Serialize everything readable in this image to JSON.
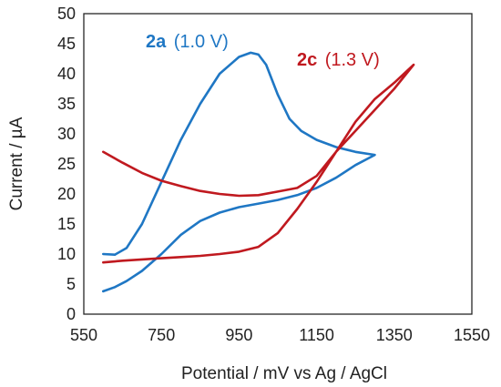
{
  "chart_data": {
    "type": "line",
    "title": "",
    "xlabel": "Potential / mV vs Ag / AgCl",
    "ylabel": "Current / µA",
    "xlim": [
      550,
      1550
    ],
    "ylim": [
      0,
      50
    ],
    "xticks": [
      550,
      750,
      950,
      1150,
      1350,
      1550
    ],
    "yticks": [
      0,
      5,
      10,
      15,
      20,
      25,
      30,
      35,
      40,
      45,
      50
    ],
    "grid": false,
    "legend": "none",
    "annotations": [
      {
        "bold": "2a",
        "text": "(1.0 V)",
        "color": "#1f77c4"
      },
      {
        "bold": "2c",
        "text": "(1.3 V)",
        "color": "#c0191f"
      }
    ],
    "series": [
      {
        "color": "#1f77c4",
        "x": [
          600,
          630,
          660,
          700,
          750,
          800,
          850,
          900,
          950,
          980,
          1000,
          1020,
          1050,
          1080,
          1110,
          1150,
          1200,
          1250,
          1300,
          1250,
          1200,
          1150,
          1100,
          1050,
          1000,
          950,
          900,
          850,
          800,
          750,
          700,
          660,
          630,
          600
        ],
        "y": [
          10.0,
          9.9,
          11.0,
          15.0,
          22.0,
          29.0,
          35.0,
          40.0,
          42.8,
          43.5,
          43.2,
          41.5,
          36.5,
          32.5,
          30.5,
          29.0,
          27.8,
          27.0,
          26.5,
          24.8,
          22.7,
          21.0,
          19.8,
          19.0,
          18.4,
          17.8,
          16.9,
          15.5,
          13.2,
          10.0,
          7.2,
          5.5,
          4.5,
          3.8
        ]
      },
      {
        "color": "#c0191f",
        "x": [
          600,
          650,
          700,
          750,
          800,
          850,
          900,
          950,
          1000,
          1050,
          1100,
          1150,
          1200,
          1250,
          1300,
          1350,
          1400,
          1350,
          1300,
          1250,
          1200,
          1150,
          1100,
          1050,
          1000,
          950,
          900,
          850,
          800,
          750,
          700,
          650,
          600
        ],
        "y": [
          27.0,
          25.2,
          23.5,
          22.2,
          21.3,
          20.5,
          20.0,
          19.7,
          19.8,
          20.4,
          21.0,
          23.0,
          27.0,
          32.0,
          35.8,
          38.5,
          41.5,
          37.5,
          34.0,
          30.5,
          27.0,
          22.0,
          17.5,
          13.5,
          11.2,
          10.4,
          10.0,
          9.7,
          9.5,
          9.3,
          9.1,
          8.9,
          8.6
        ]
      }
    ]
  }
}
